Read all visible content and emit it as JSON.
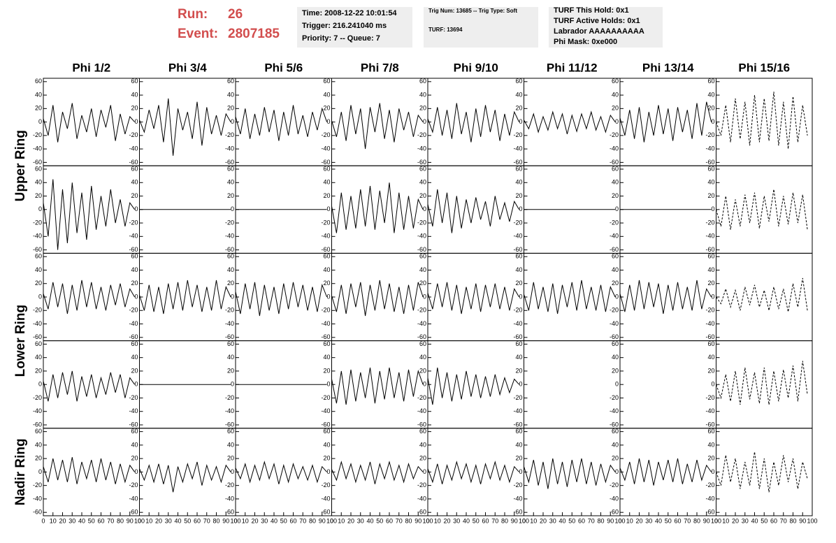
{
  "header": {
    "run_label": "Run:",
    "run": 26,
    "event_label": "Event:",
    "event": 2807185,
    "box1": [
      "Time: 2008-12-22 10:01:54",
      "Trigger: 216.241040 ms",
      "Priority: 7 -- Queue: 7"
    ],
    "box2": [
      "Trig Num: 13685 -- Trig Type: Soft",
      "TURF: 13694"
    ],
    "box3": [
      "TURF This Hold: 0x1",
      "TURF Active Holds: 0x1",
      "Labrador AAAAAAAAAA",
      "Phi Mask: 0xe000"
    ]
  },
  "chart_data": {
    "type": "line",
    "color": "#000000",
    "column_titles": [
      "Phi 1/2",
      "Phi 3/4",
      "Phi 5/6",
      "Phi 7/8",
      "Phi 9/10",
      "Phi 11/12",
      "Phi 13/14",
      "Phi 15/16"
    ],
    "row_labels": [
      "Upper Ring",
      "Lower Ring",
      "Nadir Ring"
    ],
    "line_styles": [
      "solid",
      "solid",
      "solid",
      "solid",
      "solid",
      "solid",
      "solid",
      "dashed"
    ],
    "xlim": [
      0,
      100
    ],
    "xticks": [
      0,
      10,
      20,
      30,
      40,
      50,
      60,
      70,
      80,
      90,
      100
    ],
    "ylim": [
      -65,
      65
    ],
    "yticks": [
      -60,
      -40,
      -20,
      0,
      20,
      40,
      60
    ],
    "x": [
      0,
      5,
      10,
      15,
      20,
      25,
      30,
      35,
      40,
      45,
      50,
      55,
      60,
      65,
      70,
      75,
      80,
      85,
      90,
      95
    ],
    "rows": [
      {
        "values": [
          [
            5,
            -20,
            25,
            -30,
            15,
            -10,
            28,
            -25,
            10,
            -15,
            20,
            -22,
            18,
            -8,
            25,
            -28,
            12,
            -18,
            8,
            0
          ],
          [
            3,
            -15,
            18,
            -10,
            25,
            -30,
            35,
            -50,
            20,
            -12,
            15,
            -25,
            30,
            -35,
            22,
            -18,
            10,
            -20,
            12,
            0
          ],
          [
            8,
            -18,
            20,
            -25,
            12,
            -20,
            22,
            -15,
            18,
            -28,
            15,
            -20,
            25,
            -18,
            10,
            -22,
            15,
            -12,
            20,
            0
          ],
          [
            2,
            -22,
            15,
            -28,
            25,
            -18,
            20,
            -40,
            22,
            -15,
            28,
            -25,
            18,
            -30,
            20,
            -12,
            15,
            -22,
            10,
            0
          ],
          [
            5,
            -15,
            22,
            -20,
            18,
            -25,
            28,
            -18,
            15,
            -30,
            20,
            -22,
            25,
            -15,
            18,
            -28,
            12,
            -20,
            15,
            0
          ],
          [
            3,
            -10,
            12,
            -15,
            8,
            -12,
            15,
            -10,
            12,
            -18,
            10,
            -14,
            12,
            -10,
            15,
            -12,
            8,
            -15,
            10,
            0
          ],
          [
            6,
            -20,
            18,
            -25,
            22,
            -30,
            15,
            -20,
            25,
            -18,
            20,
            -28,
            22,
            -15,
            18,
            -25,
            28,
            -20,
            30,
            0
          ],
          [
            0,
            -20,
            25,
            -30,
            35,
            -25,
            30,
            -35,
            40,
            -30,
            35,
            -28,
            45,
            -35,
            30,
            -40,
            38,
            -30,
            25,
            -20
          ]
        ]
      },
      {
        "values": [
          [
            10,
            -40,
            45,
            -60,
            30,
            -50,
            40,
            -35,
            25,
            -45,
            35,
            -30,
            20,
            -25,
            30,
            -20,
            15,
            -25,
            10,
            0
          ],
          [
            0,
            0,
            0,
            0,
            0,
            0,
            0,
            0,
            0,
            0,
            0,
            0,
            0,
            0,
            0,
            0,
            0,
            0,
            0,
            0
          ],
          [
            0,
            0,
            0,
            0,
            0,
            0,
            0,
            0,
            0,
            0,
            0,
            0,
            0,
            0,
            0,
            0,
            0,
            0,
            0,
            0
          ],
          [
            5,
            -35,
            25,
            -30,
            20,
            -28,
            30,
            -25,
            35,
            -30,
            28,
            -20,
            40,
            -35,
            25,
            -30,
            20,
            -28,
            15,
            0
          ],
          [
            8,
            -25,
            30,
            -20,
            25,
            -35,
            20,
            -28,
            15,
            -20,
            18,
            -15,
            12,
            -25,
            20,
            -15,
            10,
            -18,
            12,
            0
          ],
          [
            0,
            0,
            0,
            0,
            0,
            0,
            0,
            0,
            0,
            0,
            0,
            0,
            0,
            0,
            0,
            0,
            0,
            0,
            0,
            0
          ],
          [
            0,
            0,
            0,
            0,
            0,
            0,
            0,
            0,
            0,
            0,
            0,
            0,
            0,
            0,
            0,
            0,
            0,
            0,
            0,
            0
          ],
          [
            0,
            -25,
            20,
            -30,
            15,
            -25,
            22,
            -20,
            25,
            -28,
            20,
            -18,
            30,
            -25,
            20,
            -22,
            25,
            -20,
            22,
            -30
          ]
        ]
      },
      {
        "values": [
          [
            5,
            -18,
            22,
            -15,
            20,
            -25,
            18,
            -20,
            25,
            -15,
            22,
            -18,
            15,
            -20,
            18,
            -12,
            20,
            -15,
            12,
            0
          ],
          [
            3,
            -20,
            18,
            -22,
            15,
            -25,
            20,
            -18,
            22,
            -20,
            25,
            -15,
            18,
            -22,
            15,
            -20,
            25,
            -18,
            15,
            0
          ],
          [
            8,
            -25,
            20,
            -18,
            22,
            -28,
            18,
            -20,
            15,
            -25,
            20,
            -18,
            22,
            -15,
            18,
            -20,
            15,
            -22,
            18,
            0
          ],
          [
            2,
            -22,
            18,
            -25,
            20,
            -15,
            22,
            -28,
            18,
            -20,
            25,
            -18,
            20,
            -22,
            15,
            -25,
            18,
            -20,
            22,
            0
          ],
          [
            6,
            -18,
            20,
            -15,
            22,
            -20,
            18,
            -25,
            15,
            -18,
            20,
            -22,
            18,
            -15,
            20,
            -18,
            15,
            -20,
            12,
            0
          ],
          [
            4,
            -20,
            22,
            -18,
            15,
            -22,
            20,
            -25,
            18,
            -15,
            22,
            -20,
            25,
            -18,
            15,
            -20,
            18,
            -22,
            15,
            0
          ],
          [
            5,
            -22,
            18,
            -20,
            25,
            -18,
            22,
            -15,
            20,
            -25,
            18,
            -20,
            22,
            -18,
            15,
            -20,
            25,
            -18,
            12,
            0
          ],
          [
            0,
            -10,
            12,
            -15,
            10,
            -20,
            15,
            -12,
            18,
            -15,
            10,
            -20,
            15,
            -18,
            12,
            -22,
            20,
            -15,
            28,
            -20
          ]
        ]
      },
      {
        "values": [
          [
            5,
            -25,
            15,
            -20,
            18,
            -15,
            20,
            -25,
            12,
            -18,
            15,
            -20,
            10,
            -15,
            18,
            -12,
            15,
            -20,
            10,
            0
          ],
          [
            0,
            0,
            0,
            0,
            0,
            0,
            0,
            0,
            0,
            0,
            0,
            0,
            0,
            0,
            0,
            0,
            0,
            0,
            0,
            0
          ],
          [
            0,
            0,
            0,
            0,
            0,
            0,
            0,
            0,
            0,
            0,
            0,
            0,
            0,
            0,
            0,
            0,
            0,
            0,
            0,
            0
          ],
          [
            8,
            -28,
            20,
            -30,
            22,
            -25,
            18,
            -20,
            25,
            -28,
            20,
            -22,
            25,
            -20,
            18,
            -25,
            22,
            -18,
            20,
            0
          ],
          [
            10,
            -30,
            25,
            -20,
            18,
            -25,
            15,
            -22,
            20,
            -18,
            15,
            -20,
            12,
            -18,
            15,
            -15,
            10,
            -12,
            8,
            0
          ],
          [],
          [],
          [
            0,
            -20,
            15,
            -25,
            20,
            -30,
            25,
            -22,
            18,
            -28,
            25,
            -30,
            20,
            -25,
            22,
            -20,
            28,
            -25,
            35,
            -15
          ]
        ]
      },
      {
        "values": [
          [
            8,
            -15,
            20,
            -12,
            18,
            -15,
            22,
            -18,
            15,
            -10,
            18,
            -15,
            20,
            -12,
            15,
            -18,
            12,
            -15,
            10,
            0
          ],
          [
            5,
            -12,
            10,
            -15,
            12,
            -18,
            10,
            -30,
            8,
            -15,
            12,
            -10,
            15,
            -20,
            10,
            -12,
            8,
            -15,
            10,
            0
          ],
          [
            6,
            -10,
            12,
            -15,
            10,
            -12,
            15,
            -10,
            12,
            -18,
            10,
            -15,
            12,
            -10,
            8,
            -12,
            10,
            -15,
            8,
            0
          ],
          [
            4,
            -12,
            15,
            -10,
            12,
            -15,
            10,
            -12,
            15,
            -18,
            12,
            -10,
            15,
            -12,
            10,
            -15,
            12,
            -10,
            8,
            0
          ],
          [
            5,
            -15,
            12,
            -18,
            10,
            -12,
            15,
            -10,
            12,
            -15,
            10,
            -18,
            12,
            -10,
            15,
            -12,
            10,
            -15,
            8,
            0
          ],
          [
            8,
            -15,
            18,
            -20,
            15,
            -25,
            20,
            -18,
            15,
            -22,
            18,
            -15,
            20,
            -18,
            15,
            -20,
            12,
            -15,
            10,
            0
          ],
          [
            6,
            -12,
            15,
            -18,
            20,
            -15,
            18,
            -20,
            15,
            -12,
            18,
            -15,
            20,
            -18,
            12,
            -15,
            18,
            -12,
            10,
            0
          ],
          [
            0,
            -20,
            25,
            -15,
            20,
            -25,
            15,
            -20,
            30,
            -25,
            20,
            -30,
            15,
            -20,
            25,
            -15,
            20,
            -25,
            15,
            -10
          ]
        ]
      }
    ]
  }
}
